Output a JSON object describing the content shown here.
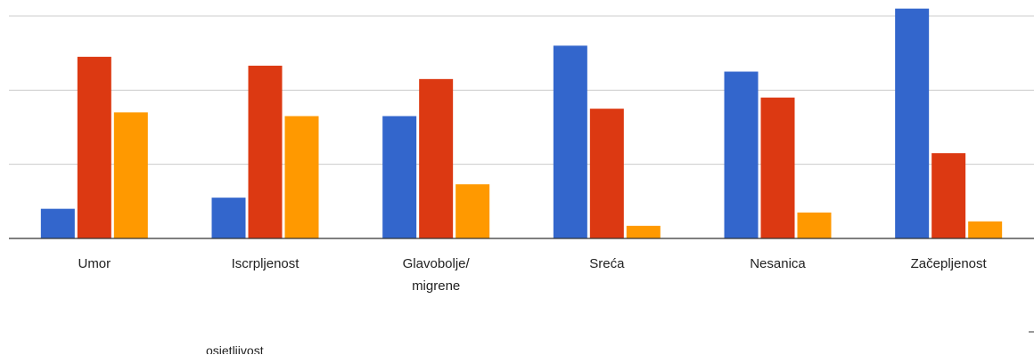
{
  "chart_data": {
    "type": "bar",
    "title": "",
    "xlabel": "",
    "ylabel": "",
    "categories": [
      [
        "Umor"
      ],
      [
        "Iscrpljenost"
      ],
      [
        "Glavobolje/",
        "migrene"
      ],
      [
        "Sreća"
      ],
      [
        "Nesanica"
      ],
      [
        "Začepljenost"
      ]
    ],
    "series": [
      {
        "color": "#3366cc",
        "values": [
          4,
          5.5,
          16.5,
          26,
          22.5,
          31
        ]
      },
      {
        "color": "#dc3912",
        "values": [
          24.5,
          23.3,
          21.5,
          17.5,
          19,
          11.5
        ]
      },
      {
        "color": "#ff9900",
        "values": [
          17,
          16.5,
          7.3,
          1.7,
          3.5,
          2.3
        ]
      }
    ],
    "ylim": [
      0,
      30
    ],
    "y_gridlines": [
      0,
      10,
      20,
      30
    ],
    "grid": true,
    "legend": "none"
  },
  "extra_label": "osjetljivost"
}
